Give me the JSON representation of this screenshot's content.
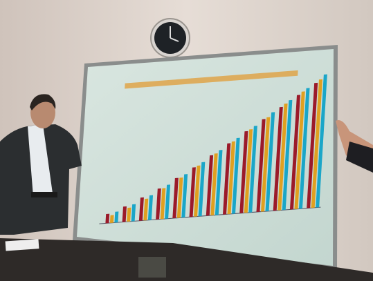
{
  "chart_data": {
    "type": "bar",
    "categories": [
      null,
      null,
      null,
      null,
      null,
      null,
      null,
      null,
      null,
      null,
      null,
      null,
      null
    ],
    "series": [
      {
        "color": "#9b1a2a",
        "values": [
          12,
          20,
          30,
          40,
          52,
          64,
          78,
          92,
          106,
          120,
          134,
          148,
          162
        ]
      },
      {
        "color": "#e0a020",
        "values": [
          10,
          18,
          28,
          40,
          52,
          66,
          80,
          94,
          108,
          122,
          138,
          152,
          166
        ]
      },
      {
        "color": "#1aa6c8",
        "values": [
          14,
          22,
          32,
          44,
          56,
          70,
          84,
          98,
          112,
          128,
          142,
          156,
          172
        ]
      }
    ]
  }
}
